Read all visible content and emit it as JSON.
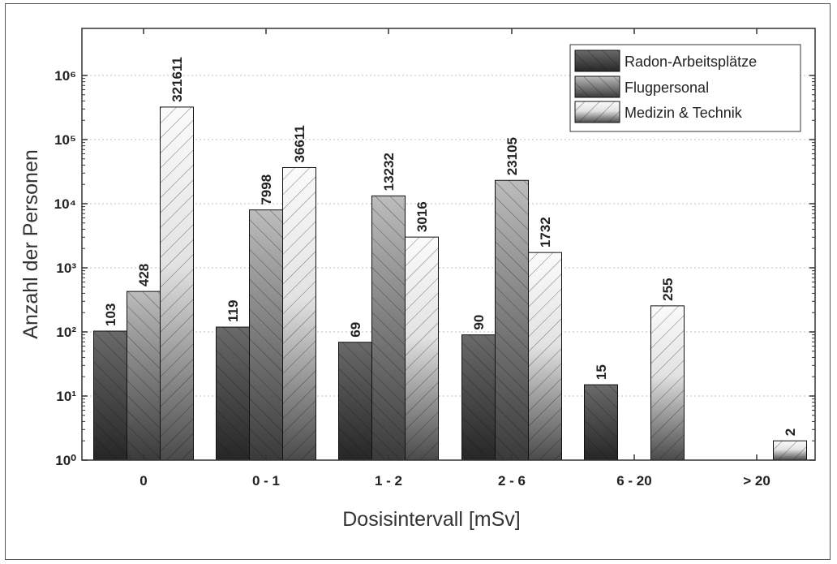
{
  "chart_data": {
    "type": "bar",
    "scale_y": "log",
    "xlabel": "Dosisintervall [mSv]",
    "ylabel": "Anzahl der Personen",
    "ylim": [
      1,
      1000000
    ],
    "yticks": [
      "10⁰",
      "10¹",
      "10²",
      "10³",
      "10⁴",
      "10⁵",
      "10⁶"
    ],
    "categories": [
      "0",
      "0 - 1",
      "1 - 2",
      "2 - 6",
      "6 - 20",
      "> 20"
    ],
    "series": [
      {
        "name": "Radon-Arbeitsplätze",
        "values": [
          103,
          119,
          69,
          90,
          15,
          null
        ],
        "labels": [
          "103",
          "119",
          "69",
          "90",
          "15",
          ""
        ]
      },
      {
        "name": "Flugpersonal",
        "values": [
          428,
          7998,
          13232,
          23105,
          null,
          null
        ],
        "labels": [
          "428",
          "7998",
          "13232",
          "23105",
          "",
          ""
        ]
      },
      {
        "name": "Medizin & Technik",
        "values": [
          321611,
          36611,
          3016,
          1732,
          255,
          2
        ],
        "labels": [
          "321611",
          "36611",
          "3016",
          "1732",
          "255",
          "2"
        ]
      }
    ],
    "legend_position": "top-right",
    "grid": "horizontal dotted"
  }
}
